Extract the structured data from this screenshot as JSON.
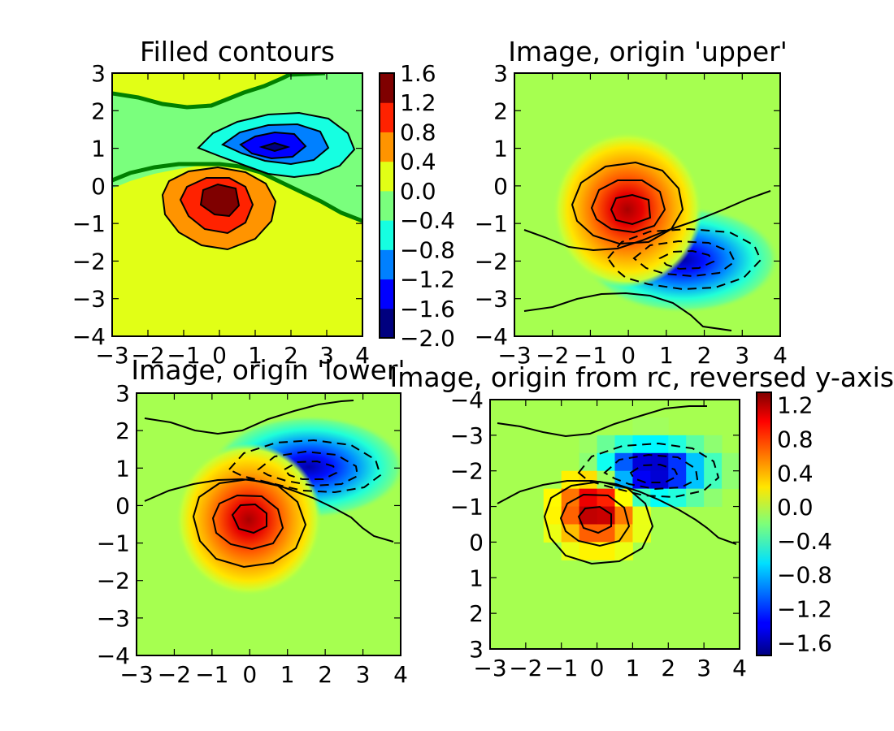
{
  "chart_data": [
    {
      "type": "heatmap",
      "subtype": "filled-contour",
      "title": "Filled contours",
      "xlim": [
        -3,
        4
      ],
      "ylim": [
        -4,
        3
      ],
      "xticks": [
        "−3",
        "−2",
        "−1",
        "0",
        "1",
        "2",
        "3",
        "4"
      ],
      "yticks": [
        "3",
        "2",
        "1",
        "0",
        "−1",
        "−2",
        "−3",
        "−4"
      ],
      "y_reversed": false,
      "features": [
        {
          "kind": "peak",
          "x": 0.0,
          "y": -0.4,
          "max": 1.35
        },
        {
          "kind": "trough",
          "x": 1.5,
          "y": 1.0,
          "min": -1.75
        }
      ],
      "contour_levels": [
        -2.0,
        -1.6,
        -1.2,
        -0.8,
        -0.4,
        0.0,
        0.4,
        0.8,
        1.2,
        1.6
      ],
      "highlighted_level": 0.0,
      "colorbar": {
        "ticks": [
          "1.6",
          "1.2",
          "0.8",
          "0.4",
          "0.0",
          "−0.4",
          "−0.8",
          "−1.2",
          "−1.6",
          "−2.0"
        ],
        "range": [
          -2.0,
          1.6
        ],
        "discrete": true,
        "colors": [
          "#00007f",
          "#0000ff",
          "#0080ff",
          "#16ffe1",
          "#7aff7d",
          "#e1ff16",
          "#ff9400",
          "#ff2200",
          "#7f0000"
        ]
      }
    },
    {
      "type": "heatmap",
      "title": "Image, origin 'upper'",
      "xlim": [
        -3,
        4
      ],
      "ylim": [
        -4,
        3
      ],
      "xticks": [
        "−3",
        "−2",
        "−1",
        "0",
        "1",
        "2",
        "3",
        "4"
      ],
      "yticks": [
        "3",
        "2",
        "1",
        "0",
        "−1",
        "−2",
        "−3",
        "−4"
      ],
      "y_reversed": false,
      "features": [
        {
          "kind": "peak",
          "x": 0.0,
          "y": -0.6,
          "max": 1.35
        },
        {
          "kind": "trough",
          "x": 1.5,
          "y": -2.0,
          "min": -1.75
        }
      ]
    },
    {
      "type": "heatmap",
      "title": "Image, origin 'lower'",
      "xlim": [
        -3,
        4
      ],
      "ylim": [
        -4,
        3
      ],
      "xticks": [
        "−3",
        "−2",
        "−1",
        "0",
        "1",
        "2",
        "3",
        "4"
      ],
      "yticks": [
        "3",
        "2",
        "1",
        "0",
        "−1",
        "−2",
        "−3",
        "−4"
      ],
      "y_reversed": false,
      "features": [
        {
          "kind": "peak",
          "x": 0.0,
          "y": -0.4,
          "max": 1.35
        },
        {
          "kind": "trough",
          "x": 1.5,
          "y": 1.0,
          "min": -1.75
        }
      ]
    },
    {
      "type": "heatmap",
      "title": "Image, origin from rc, reversed y-axis",
      "xlim": [
        -3,
        4
      ],
      "ylim": [
        3,
        -4
      ],
      "xticks": [
        "−3",
        "−2",
        "−1",
        "0",
        "1",
        "2",
        "3",
        "4"
      ],
      "yticks": [
        "−4",
        "−3",
        "−2",
        "−1",
        "0",
        "1",
        "2",
        "3"
      ],
      "y_reversed": true,
      "pixelated": true,
      "features": [
        {
          "kind": "peak",
          "x": 0.0,
          "y": -1.0,
          "max": 1.35
        },
        {
          "kind": "trough",
          "x": 1.5,
          "y": -2.0,
          "min": -1.75
        }
      ],
      "colorbar": {
        "ticks": [
          "1.2",
          "0.8",
          "0.4",
          "0.0",
          "−0.4",
          "−0.8",
          "−1.2",
          "−1.6"
        ],
        "range": [
          -1.75,
          1.35
        ],
        "discrete": false
      }
    }
  ]
}
